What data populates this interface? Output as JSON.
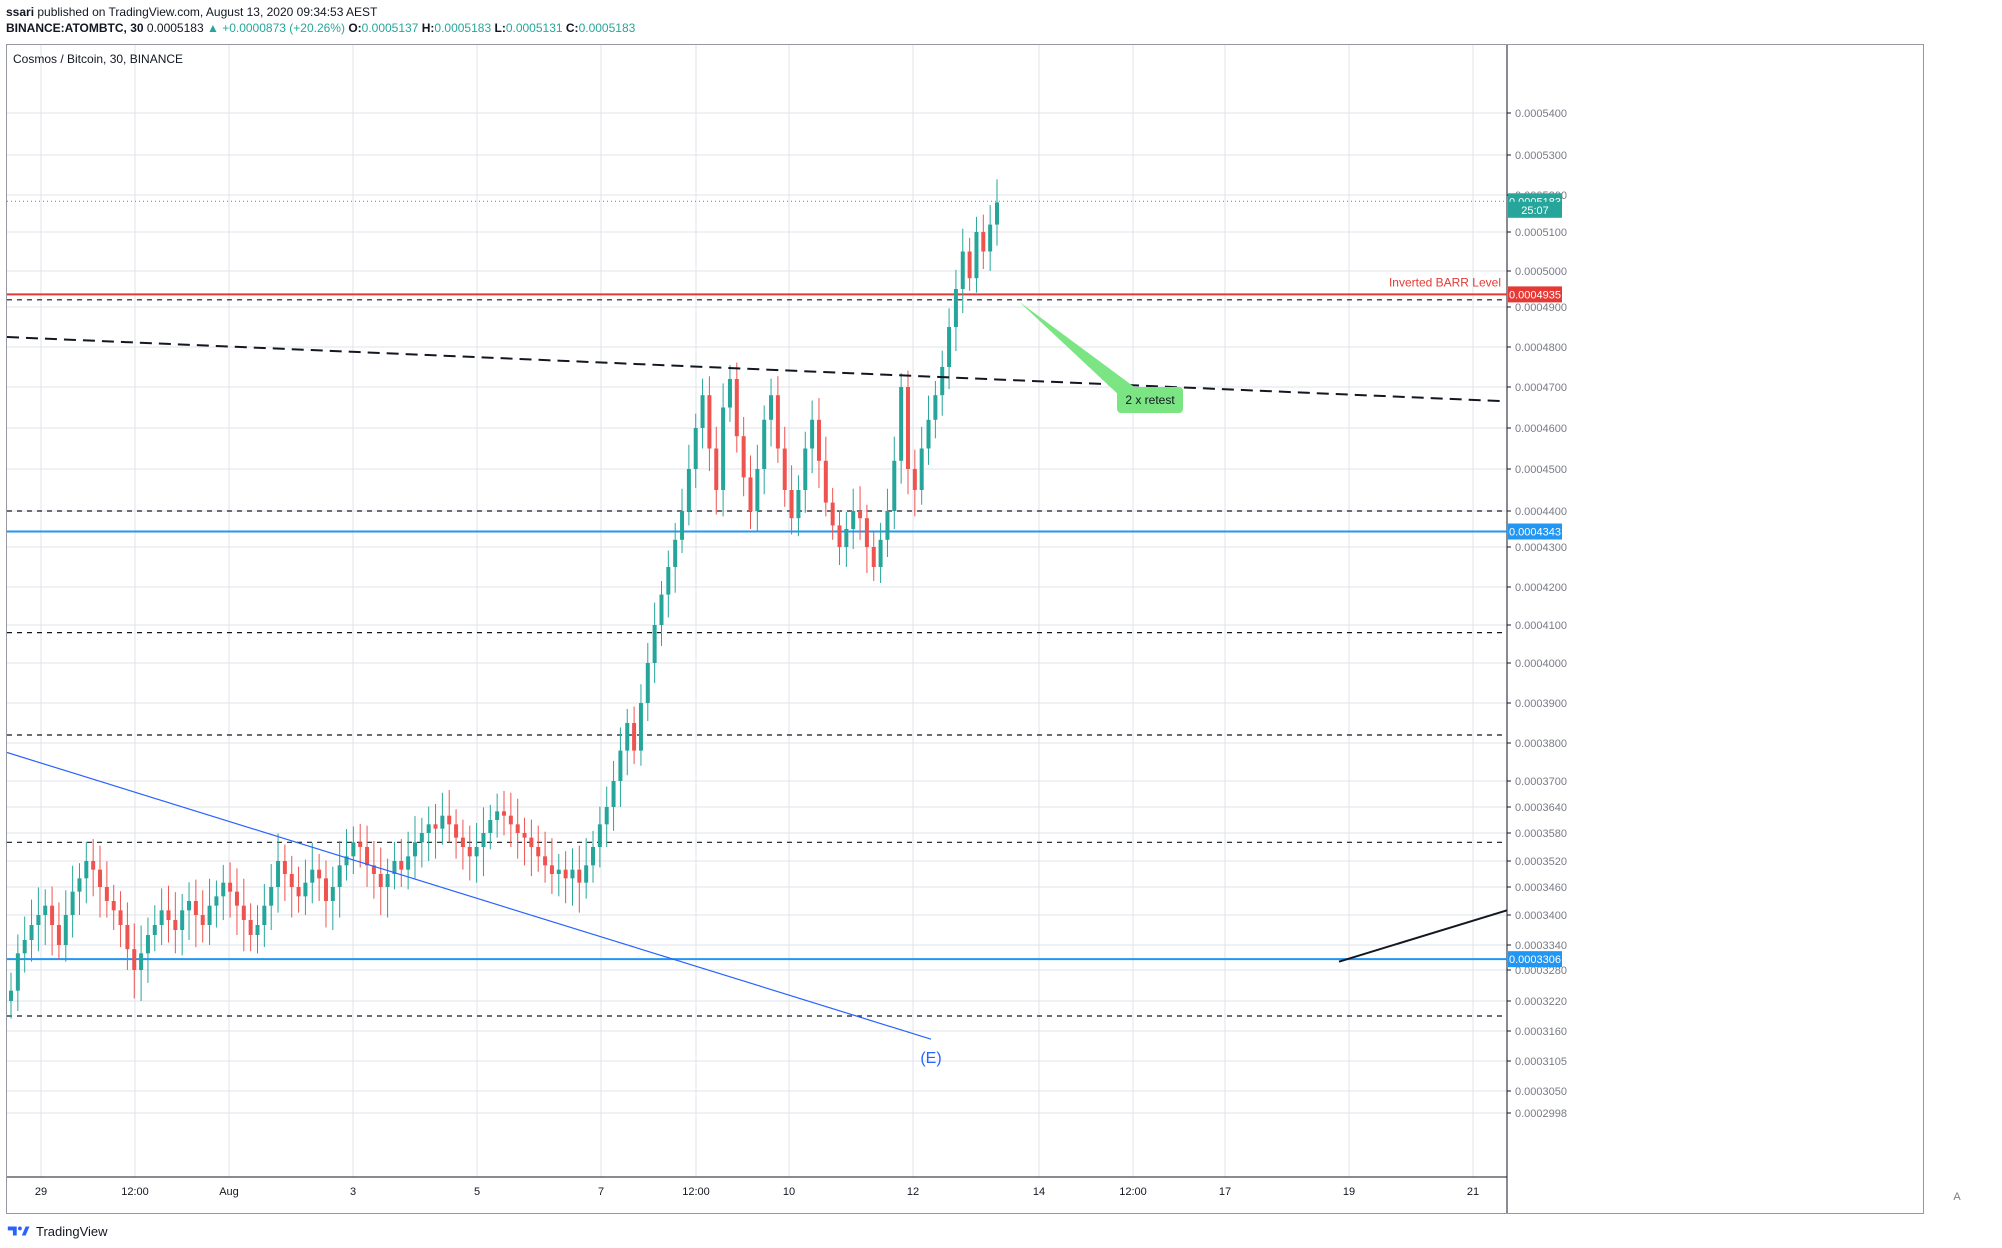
{
  "header": {
    "author": "ssari",
    "published_text": " published on TradingView.com, August 13, 2020 09:34:53 AEST",
    "symbol": "BINANCE:ATOMBTC, 30",
    "last": "0.0005183",
    "change": "▲ +0.0000873 (+20.26%)",
    "o_label": "O:",
    "o_val": "0.0005137",
    "h_label": "H:",
    "h_val": "0.0005183",
    "l_label": "L:",
    "l_val": "0.0005131",
    "c_label": "C:",
    "c_val": "0.0005183"
  },
  "chart_title": "Cosmos / Bitcoin, 30, BINANCE",
  "footer": {
    "brand": "TradingView"
  },
  "auto_label": "A",
  "colors": {
    "up": "#26a69a",
    "down": "#ef5350",
    "red_level": "#e53935",
    "blue_level": "#2196f3",
    "trendline": "#2962ff",
    "callout": "#7ae582",
    "grid": "#e0e3eb",
    "axis_text": "#787b86",
    "last_price_bg": "#26a69a"
  },
  "chart_data": {
    "type": "candlestick",
    "title": "Cosmos / Bitcoin, 30, BINANCE",
    "ylim": [
      0.0002998,
      0.00054
    ],
    "y_ticks": [
      "0.0005400",
      "0.0005300",
      "0.0005200",
      "0.0005100",
      "0.0005000",
      "0.0004900",
      "0.0004800",
      "0.0004700",
      "0.0004600",
      "0.0004500",
      "0.0004400",
      "0.0004300",
      "0.0004200",
      "0.0004100",
      "0.0004000",
      "0.0003900",
      "0.0003800",
      "0.0003700",
      "0.0003640",
      "0.0003580",
      "0.0003520",
      "0.0003460",
      "0.0003400",
      "0.0003340",
      "0.0003280",
      "0.0003220",
      "0.0003160",
      "0.0003105",
      "0.0003050",
      "0.0002998"
    ],
    "x_labels": [
      "29",
      "12:00",
      "Aug",
      "3",
      "5",
      "7",
      "12:00",
      "10",
      "12",
      "14",
      "12:00",
      "17",
      "19",
      "21"
    ],
    "price_labels": [
      {
        "text": "0.0005183",
        "value": 0.0005183,
        "color": "#26a69a"
      },
      {
        "text": "25:07",
        "value": 0.000516,
        "color": "#26a69a"
      },
      {
        "text": "0.0004935",
        "value": 0.0004935,
        "color": "#e53935"
      },
      {
        "text": "0.0004343",
        "value": 0.0004343,
        "color": "#2196f3"
      },
      {
        "text": "0.0003306",
        "value": 0.0003306,
        "color": "#2196f3"
      }
    ],
    "horizontal_levels": [
      {
        "value": 0.0004935,
        "style": "solid",
        "color": "#e53935",
        "label": "Inverted BARR Level"
      },
      {
        "value": 0.0004343,
        "style": "solid",
        "color": "#2196f3"
      },
      {
        "value": 0.0003306,
        "style": "solid",
        "color": "#2196f3"
      },
      {
        "value": 0.000492,
        "style": "dashed",
        "color": "#131722"
      },
      {
        "value": 0.00044,
        "style": "dashed",
        "color": "#131722"
      },
      {
        "value": 0.000408,
        "style": "dashed",
        "color": "#131722"
      },
      {
        "value": 0.000382,
        "style": "dashed",
        "color": "#131722"
      },
      {
        "value": 0.000356,
        "style": "dashed",
        "color": "#131722"
      },
      {
        "value": 0.000319,
        "style": "dashed",
        "color": "#131722"
      }
    ],
    "annotations": [
      {
        "text": "2 x retest",
        "type": "callout"
      },
      {
        "text": "(E)",
        "type": "label"
      }
    ],
    "candles_close": [
      0.000324,
      0.000332,
      0.000335,
      0.000338,
      0.00034,
      0.000342,
      0.000338,
      0.000334,
      0.00034,
      0.000345,
      0.000348,
      0.000352,
      0.00035,
      0.000346,
      0.000343,
      0.000341,
      0.000338,
      0.000333,
      0.000328,
      0.000332,
      0.000336,
      0.000338,
      0.000341,
      0.000339,
      0.000337,
      0.000341,
      0.000343,
      0.00034,
      0.000338,
      0.000342,
      0.000344,
      0.000347,
      0.000345,
      0.000342,
      0.000339,
      0.000336,
      0.000338,
      0.000342,
      0.000346,
      0.000352,
      0.000349,
      0.000346,
      0.000344,
      0.000347,
      0.00035,
      0.000348,
      0.000343,
      0.000346,
      0.000351,
      0.000353,
      0.000356,
      0.000355,
      0.000351,
      0.000349,
      0.000346,
      0.000349,
      0.000352,
      0.00035,
      0.000353,
      0.000356,
      0.000358,
      0.00036,
      0.000359,
      0.000362,
      0.00036,
      0.000357,
      0.000355,
      0.000353,
      0.000355,
      0.000358,
      0.000361,
      0.000363,
      0.000362,
      0.00036,
      0.000358,
      0.000357,
      0.000355,
      0.000353,
      0.000351,
      0.000349,
      0.00035,
      0.000348,
      0.00035,
      0.000347,
      0.000351,
      0.000355,
      0.00036,
      0.000364,
      0.00037,
      0.000378,
      0.000385,
      0.000378,
      0.00039,
      0.0004,
      0.00041,
      0.000418,
      0.000425,
      0.000432,
      0.00044,
      0.00045,
      0.00046,
      0.000468,
      0.000455,
      0.000445,
      0.000465,
      0.000472,
      0.000458,
      0.000448,
      0.00044,
      0.00045,
      0.000462,
      0.000468,
      0.000455,
      0.000445,
      0.000438,
      0.000445,
      0.000455,
      0.000462,
      0.000452,
      0.000442,
      0.000436,
      0.00043,
      0.000435,
      0.00044,
      0.000438,
      0.00043,
      0.000425,
      0.000432,
      0.00044,
      0.000452,
      0.00047,
      0.00045,
      0.000445,
      0.000455,
      0.000462,
      0.000468,
      0.000475,
      0.000485,
      0.000495,
      0.000505,
      0.000498,
      0.00051,
      0.000505,
      0.000512,
      0.000518
    ],
    "candles_from_date": "Jul 28 2020",
    "candles_to_date": "Aug 13 2020"
  }
}
